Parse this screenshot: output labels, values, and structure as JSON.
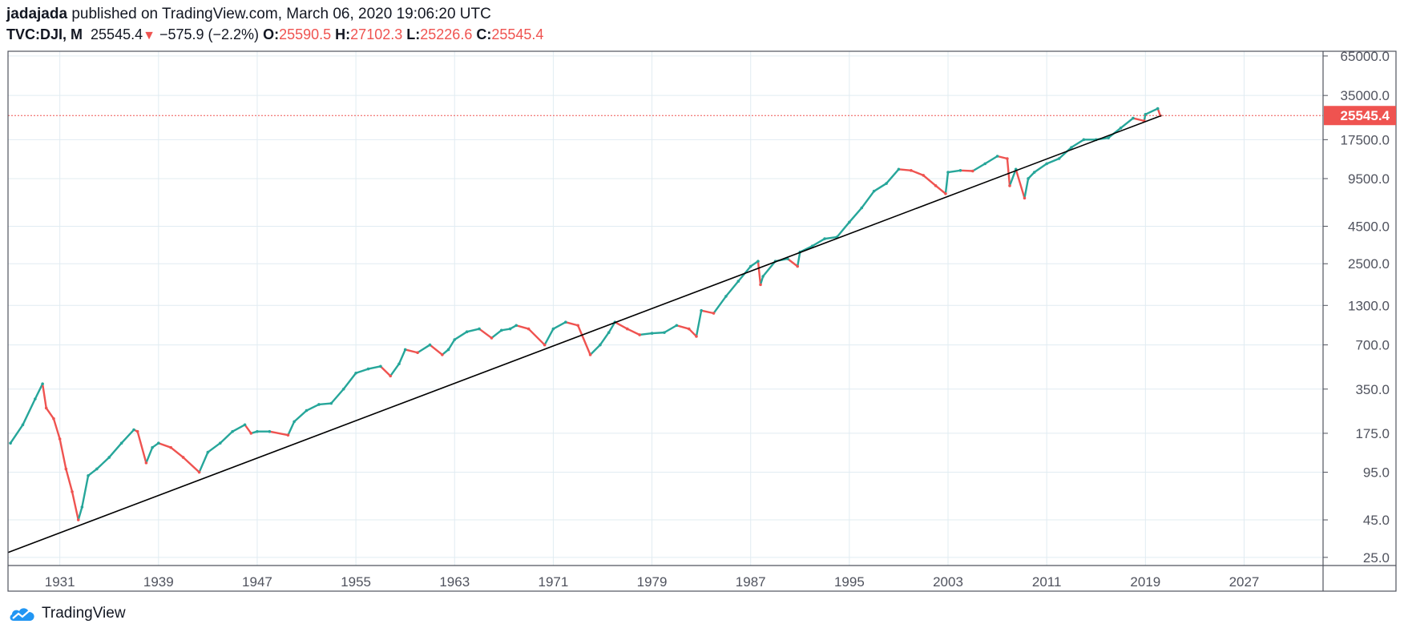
{
  "header": {
    "author": "jadajada",
    "published_text": "published on TradingView.com, March 06, 2020 19:06:20 UTC",
    "symbol": "TVC:DJI, M",
    "last": "25545.4",
    "change_arrow": "▼",
    "change": "−575.9 (−2.2%)",
    "open_label": "O:",
    "open": "25590.5",
    "high_label": "H:",
    "high": "27102.3",
    "low_label": "L:",
    "low": "25226.6",
    "close_label": "C:",
    "close": "25545.4"
  },
  "brand": {
    "name": "TradingView",
    "icon": "tradingview-cloud-icon"
  },
  "colors": {
    "up": "#26a69a",
    "down": "#ef5350",
    "grid": "#e1ecf2",
    "axis": "#50535e",
    "trendline": "#000000",
    "price_line": "#ef5350"
  },
  "chart_data": {
    "type": "line",
    "y_scale": "log",
    "x_ticks": [
      "1931",
      "1939",
      "1947",
      "1955",
      "1963",
      "1971",
      "1979",
      "1987",
      "1995",
      "2003",
      "2011",
      "2019",
      "2027"
    ],
    "y_ticks": [
      "65000.0",
      "35000.0",
      "17500.0",
      "9500.0",
      "4500.0",
      "2500.0",
      "1300.0",
      "700.0",
      "350.0",
      "175.0",
      "95.0",
      "45.0",
      "25.0"
    ],
    "ylim": [
      22,
      70000
    ],
    "xlim": [
      1926.8,
      2033.4
    ],
    "last_price_label": "25545.4",
    "series": [
      {
        "x": [
          1927.0,
          1928.0,
          1929.0,
          1929.6,
          1929.9,
          1930.5,
          1931.0,
          1931.5,
          1932.0,
          1932.5,
          1932.8,
          1933.3,
          1934.0,
          1935.0,
          1936.0,
          1937.0,
          1937.3,
          1938.0,
          1938.5,
          1939.0,
          1940.0,
          1941.0,
          1942.3,
          1943.0,
          1944.0,
          1945.0,
          1946.0,
          1946.5,
          1947.0,
          1948.0,
          1949.5,
          1950.0,
          1951.0,
          1952.0,
          1953.0,
          1954.0,
          1955.0,
          1956.0,
          1957.0,
          1957.8,
          1958.5,
          1959.0,
          1960.0,
          1961.0,
          1962.0,
          1962.5,
          1963.0,
          1964.0,
          1965.0,
          1966.0,
          1966.8,
          1967.5,
          1968.0,
          1969.0,
          1970.3,
          1971.0,
          1972.0,
          1973.0,
          1974.0,
          1974.8,
          1975.5,
          1976.0,
          1977.0,
          1978.0,
          1979.0,
          1980.0,
          1981.0,
          1982.0,
          1982.6,
          1983.0,
          1984.0,
          1985.0,
          1986.0,
          1987.0,
          1987.6,
          1987.8,
          1988.0,
          1989.0,
          1990.0,
          1990.8,
          1991.0,
          1992.0,
          1993.0,
          1994.0,
          1995.0,
          1996.0,
          1997.0,
          1998.0,
          1999.0,
          2000.0,
          2001.0,
          2002.0,
          2002.8,
          2003.0,
          2004.0,
          2005.0,
          2006.0,
          2007.0,
          2007.8,
          2008.0,
          2008.5,
          2009.2,
          2009.5,
          2010.0,
          2011.0,
          2012.0,
          2013.0,
          2014.0,
          2015.0,
          2016.0,
          2017.0,
          2018.0,
          2018.9,
          2019.0,
          2020.0,
          2020.2
        ],
        "y": [
          150,
          200,
          300,
          380,
          260,
          220,
          160,
          100,
          70,
          45,
          55,
          90,
          100,
          120,
          150,
          185,
          180,
          110,
          140,
          150,
          140,
          120,
          95,
          130,
          150,
          180,
          200,
          175,
          180,
          180,
          170,
          210,
          250,
          275,
          280,
          350,
          450,
          480,
          500,
          430,
          520,
          650,
          620,
          700,
          600,
          650,
          760,
          860,
          900,
          780,
          880,
          900,
          950,
          900,
          700,
          900,
          1000,
          950,
          600,
          700,
          850,
          1000,
          900,
          820,
          840,
          850,
          950,
          900,
          800,
          1200,
          1150,
          1500,
          1900,
          2400,
          2600,
          1800,
          2050,
          2600,
          2700,
          2400,
          3000,
          3300,
          3700,
          3800,
          4800,
          6000,
          7800,
          8800,
          11000,
          10800,
          10000,
          8500,
          7500,
          10500,
          10800,
          10700,
          12000,
          13500,
          13000,
          8500,
          11000,
          7000,
          9500,
          10500,
          12000,
          13000,
          15500,
          17500,
          17500,
          18000,
          21000,
          24500,
          23500,
          26000,
          28500,
          25545
        ]
      }
    ],
    "trendline": {
      "x": [
        1926.8,
        2020.3
      ],
      "y": [
        27,
        25545
      ]
    }
  }
}
